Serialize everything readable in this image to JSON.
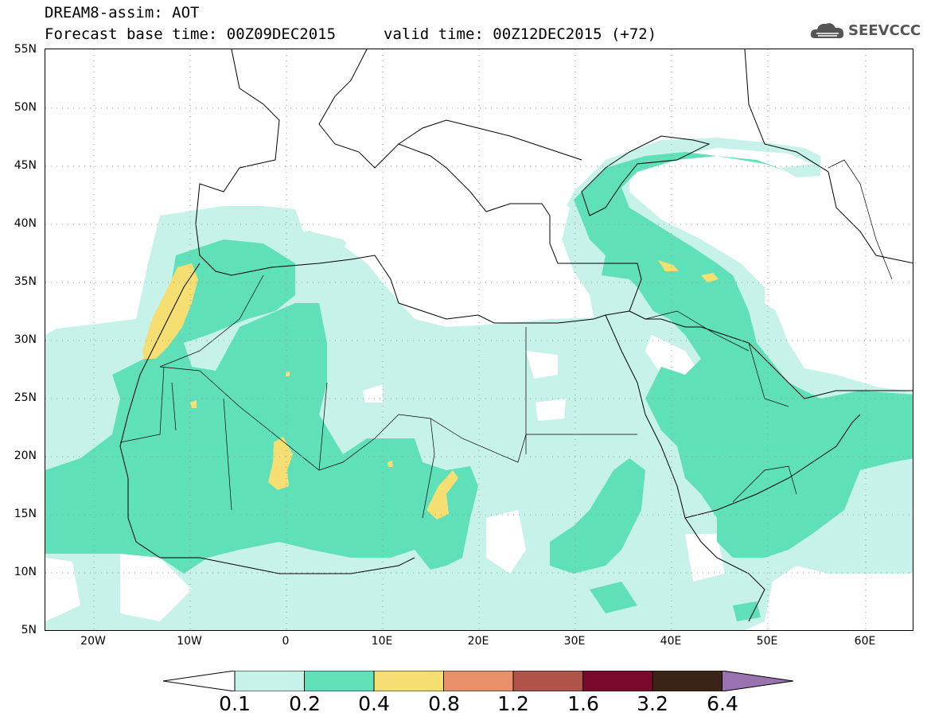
{
  "header": {
    "title": "DREAM8-assim: AOT",
    "base_time": "Forecast base time: 00Z09DEC2015",
    "valid_time": "valid time: 00Z12DEC2015 (+72)",
    "logo_text": "SEEVCCC",
    "logo_icon": "cloud-icon"
  },
  "map": {
    "lat_labels": [
      "55N",
      "50N",
      "45N",
      "40N",
      "35N",
      "30N",
      "25N",
      "20N",
      "15N",
      "10N",
      "5N"
    ],
    "lon_labels": [
      "20W",
      "10W",
      "0",
      "10E",
      "20E",
      "30E",
      "40E",
      "50E",
      "60E"
    ],
    "lat_range": [
      5,
      55
    ],
    "lon_range": [
      -25,
      65
    ],
    "field_colors": {
      "c01": "#c6f2ea",
      "c02": "#5fe0b8",
      "c04": "#f5df72"
    }
  },
  "colorbar": {
    "levels": [
      "0.1",
      "0.2",
      "0.4",
      "0.8",
      "1.2",
      "1.6",
      "3.2",
      "6.4"
    ],
    "colors": [
      "#ffffff",
      "#c6f2ea",
      "#5fe0b8",
      "#f5df72",
      "#e8906a",
      "#b0544a",
      "#7a0a2c",
      "#3a2418",
      "#9a72b0"
    ]
  }
}
